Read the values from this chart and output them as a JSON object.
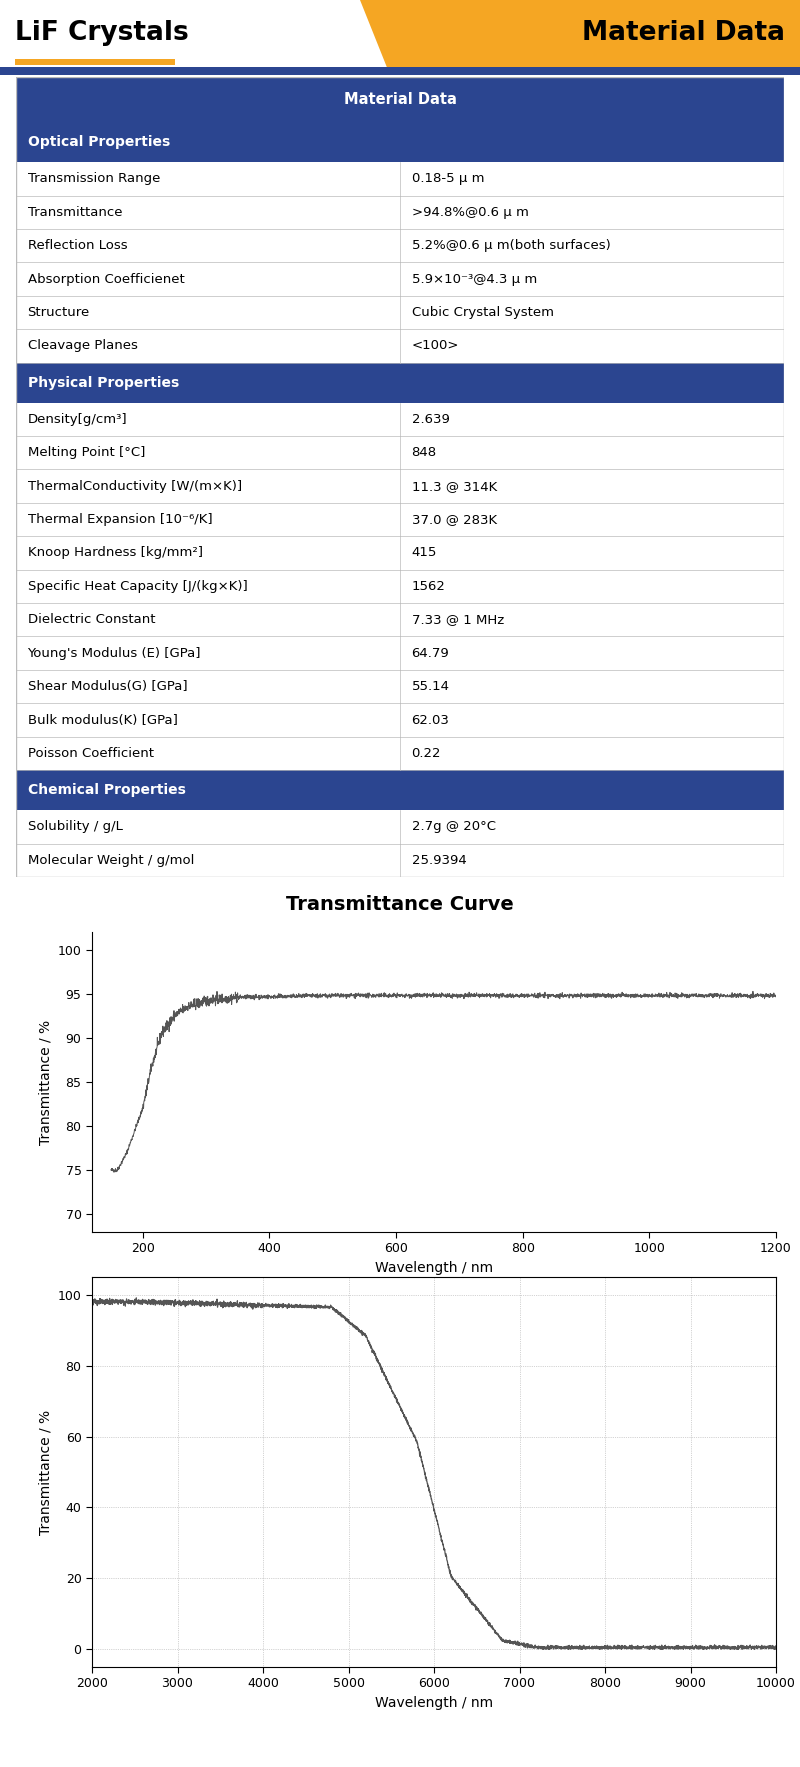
{
  "title_left": "LiF Crystals",
  "title_right": "Material Data",
  "header_bg": "#2B4590",
  "header_fg": "#FFFFFF",
  "section_bg": "#2B4590",
  "section_fg": "#FFFFFF",
  "row_bg": "#FFFFFF",
  "border_color": "#BBBBBB",
  "orange_color": "#F5A623",
  "table_title": "Material Data",
  "sections": [
    {
      "name": "Optical Properties",
      "rows": [
        [
          "Transmission Range",
          "0.18-5 μ m"
        ],
        [
          "Transmittance",
          ">94.8%@0.6 μ m"
        ],
        [
          "Reflection Loss",
          "5.2%@0.6 μ m(both surfaces)"
        ],
        [
          "Absorption Coefficienet",
          "5.9×10⁻³@4.3 μ m"
        ],
        [
          "Structure",
          "Cubic Crystal System"
        ],
        [
          "Cleavage Planes",
          "<100>"
        ]
      ]
    },
    {
      "name": "Physical Properties",
      "rows": [
        [
          "Density[g/cm³]",
          "2.639"
        ],
        [
          "Melting Point [°C]",
          "848"
        ],
        [
          "ThermalConductivity [W/(m×K)]",
          "11.3 @ 314K"
        ],
        [
          "Thermal Expansion [10⁻⁶/K]",
          "37.0 @ 283K"
        ],
        [
          "Knoop Hardness [kg/mm²]",
          "415"
        ],
        [
          "Specific Heat Capacity [J/(kg×K)]",
          "1562"
        ],
        [
          "Dielectric Constant",
          "7.33 @ 1 MHz"
        ],
        [
          "Young's Modulus (E) [GPa]",
          "64.79"
        ],
        [
          "Shear Modulus(G) [GPa]",
          "55.14"
        ],
        [
          "Bulk modulus(K) [GPa]",
          "62.03"
        ],
        [
          "Poisson Coefficient",
          "0.22"
        ]
      ]
    },
    {
      "name": "Chemical Properties",
      "rows": [
        [
          "Solubility / g/L",
          "2.7g @ 20°C"
        ],
        [
          "Molecular Weight / g/mol",
          "25.9394"
        ]
      ]
    }
  ],
  "curve1_title": "Transmittance Curve",
  "curve1_xlabel": "Wavelength / nm",
  "curve1_ylabel": "Transmittance / %",
  "curve1_xlim": [
    120,
    1200
  ],
  "curve1_ylim": [
    68,
    102
  ],
  "curve1_xticks": [
    200,
    400,
    600,
    800,
    1000,
    1200
  ],
  "curve1_yticks": [
    70,
    75,
    80,
    85,
    90,
    95,
    100
  ],
  "curve2_xlabel": "Wavelength / nm",
  "curve2_ylabel": "Transmittance / %",
  "curve2_xlim": [
    2000,
    10000
  ],
  "curve2_ylim": [
    -5,
    105
  ],
  "curve2_xticks": [
    2000,
    3000,
    4000,
    5000,
    6000,
    7000,
    8000,
    9000,
    10000
  ],
  "curve2_yticks": [
    0,
    20,
    40,
    60,
    80,
    100
  ]
}
